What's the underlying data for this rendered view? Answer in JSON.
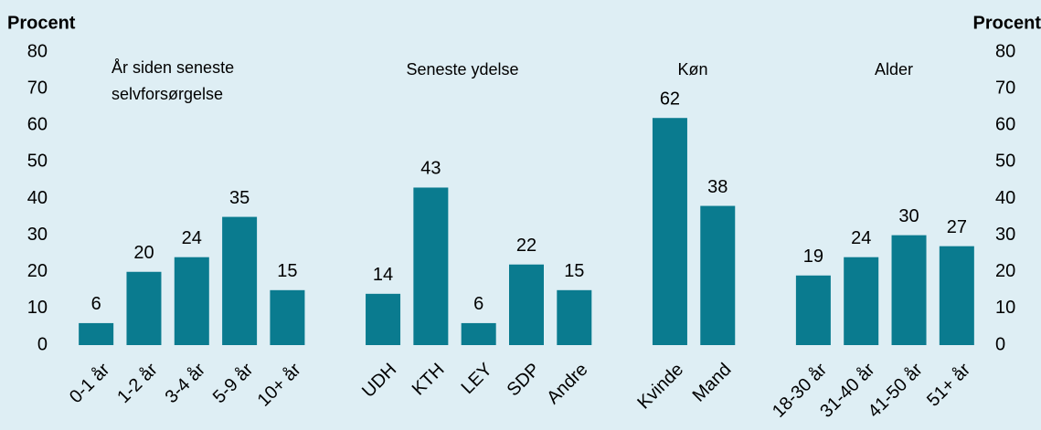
{
  "chart_data": {
    "type": "bar",
    "ylabel": "Procent",
    "y2label": "Procent",
    "categories": [
      "0-1 år",
      "1-2 år",
      "3-4 år",
      "5-9 år",
      "10+ år",
      null,
      "UDH",
      "KTH",
      "LEY",
      "SDP",
      "Andre",
      null,
      "Kvinde",
      "Mand",
      null,
      "18-30 år",
      "31-40 år",
      "41-50 år",
      "51+ år"
    ],
    "values": [
      6,
      20,
      24,
      35,
      15,
      null,
      14,
      43,
      6,
      22,
      15,
      null,
      62,
      38,
      null,
      19,
      24,
      30,
      27
    ],
    "color": "#0a7b8f",
    "annotations": [
      [
        "År siden seneste",
        "selvforsørgelse"
      ],
      [
        "Seneste ydelse"
      ],
      [
        "Køn"
      ],
      [
        "Alder"
      ]
    ],
    "ylim": [
      0,
      80
    ],
    "yticks": [
      0,
      10,
      20,
      30,
      40,
      50,
      60,
      70,
      80
    ],
    "y2lim": [
      0,
      80
    ],
    "y2ticks": [
      0,
      10,
      20,
      30,
      40,
      50,
      60,
      70,
      80
    ]
  }
}
